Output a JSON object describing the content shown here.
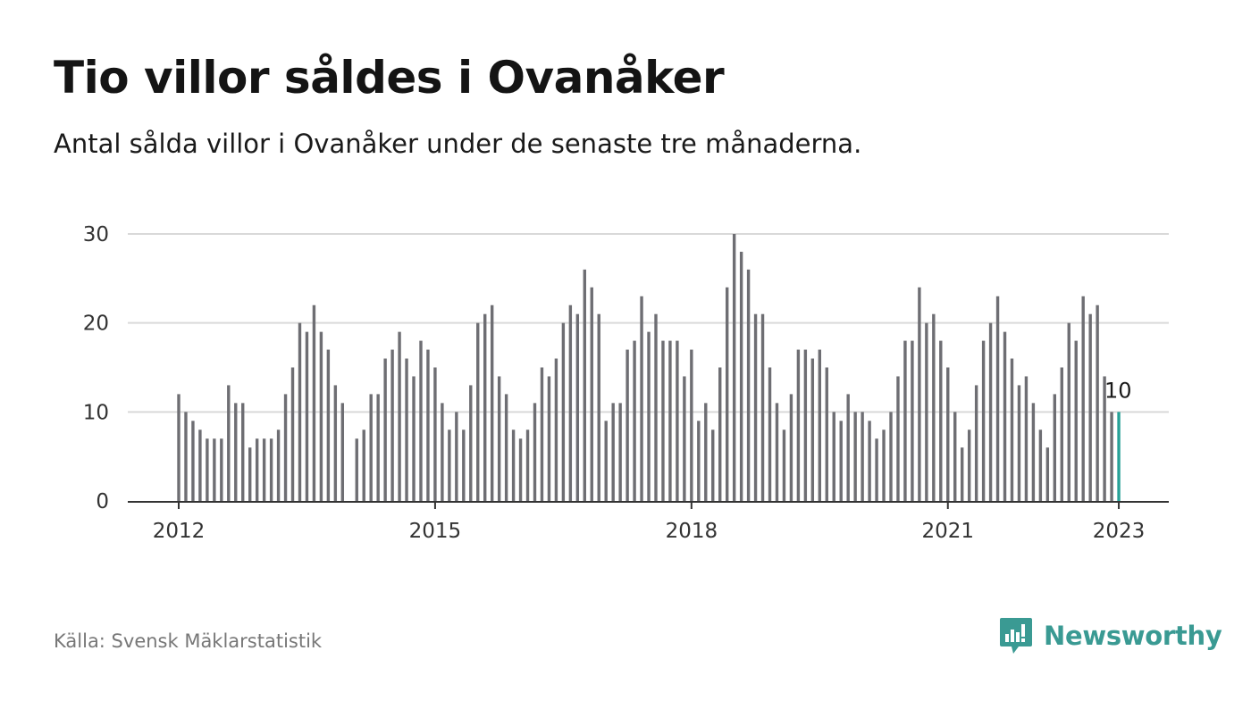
{
  "header": {
    "title": "Tio villor såldes i Ovanåker",
    "subtitle": "Antal sålda villor i Ovanåker under de senaste tre månaderna."
  },
  "footer": {
    "source": "Källa: Svensk Mäklarstatistik",
    "brand": "Newsworthy",
    "brand_icon": "bar-chart-speech-bubble-icon"
  },
  "colors": {
    "bar": "#6e6e73",
    "highlight": "#27a197",
    "grid": "#d9d9d9",
    "axis": "#333333",
    "brand": "#3a9a93"
  },
  "chart_data": {
    "type": "bar",
    "title": "",
    "xlabel": "",
    "ylabel": "",
    "ylim": [
      0,
      30
    ],
    "yticks": [
      0,
      10,
      20,
      30
    ],
    "xticks": [
      "2012",
      "2015",
      "2018",
      "2021",
      "2023"
    ],
    "grid": true,
    "start": "2012-01",
    "end": "2023-01",
    "values": [
      12,
      10,
      9,
      8,
      7,
      7,
      7,
      13,
      11,
      11,
      6,
      7,
      7,
      7,
      8,
      12,
      15,
      20,
      19,
      22,
      19,
      17,
      13,
      11,
      null,
      7,
      8,
      12,
      12,
      16,
      17,
      19,
      16,
      14,
      18,
      17,
      15,
      11,
      8,
      10,
      8,
      13,
      20,
      21,
      22,
      14,
      12,
      8,
      7,
      8,
      11,
      15,
      14,
      16,
      20,
      22,
      21,
      26,
      24,
      21,
      9,
      11,
      11,
      17,
      18,
      23,
      19,
      21,
      18,
      18,
      18,
      14,
      17,
      9,
      11,
      8,
      15,
      24,
      30,
      28,
      26,
      21,
      21,
      15,
      11,
      8,
      12,
      17,
      17,
      16,
      17,
      15,
      10,
      9,
      12,
      10,
      10,
      9,
      7,
      8,
      10,
      14,
      18,
      18,
      24,
      20,
      21,
      18,
      15,
      10,
      6,
      8,
      13,
      18,
      20,
      23,
      19,
      16,
      13,
      14,
      11,
      8,
      6,
      12,
      15,
      20,
      18,
      23,
      21,
      22,
      14,
      10,
      10
    ],
    "highlight_last": true,
    "annotation": {
      "index": 132,
      "text": "10"
    }
  }
}
